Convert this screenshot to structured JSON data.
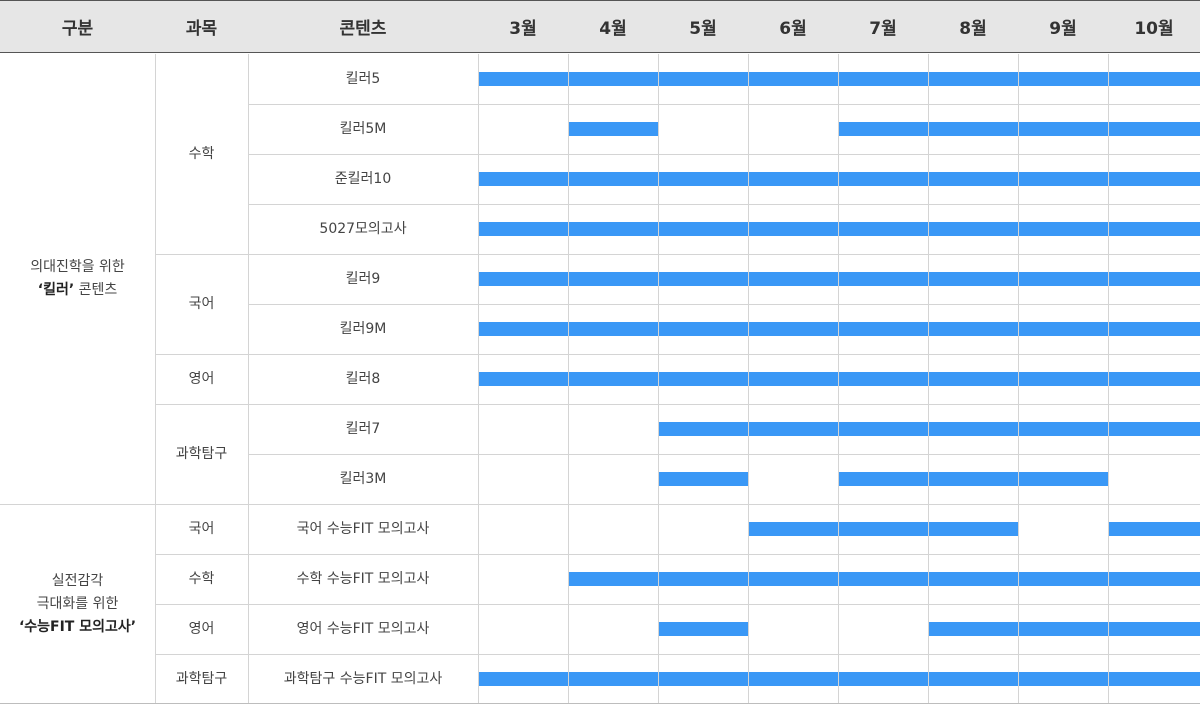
{
  "colors": {
    "bar": "#3a98f6",
    "header_bg": "#e6e6e6"
  },
  "header": {
    "category": "구분",
    "subject": "과목",
    "content": "콘텐츠"
  },
  "months": [
    "3월",
    "4월",
    "5월",
    "6월",
    "7월",
    "8월",
    "9월",
    "10월"
  ],
  "groups": [
    {
      "line1": "의대진학을 위한",
      "line2_bold": "‘킬러’",
      "line2_rest": " 콘텐츠",
      "line3_bold": ""
    },
    {
      "line1": "실전감각",
      "line2_bold": "",
      "line2_rest": "극대화를 위한",
      "line3_bold": "‘수능FIT 모의고사’"
    }
  ],
  "subjects": [
    "수학",
    "국어",
    "영어",
    "과학탐구",
    "국어",
    "수학",
    "영어",
    "과학탐구"
  ],
  "rows": [
    {
      "content": "킬러5",
      "active": [
        "3월",
        "4월",
        "5월",
        "6월",
        "7월",
        "8월",
        "9월",
        "10월"
      ]
    },
    {
      "content": "킬러5M",
      "active": [
        "4월",
        "7월",
        "8월",
        "9월",
        "10월"
      ]
    },
    {
      "content": "준킬러10",
      "active": [
        "3월",
        "4월",
        "5월",
        "6월",
        "7월",
        "8월",
        "9월",
        "10월"
      ]
    },
    {
      "content": "5027모의고사",
      "active": [
        "3월",
        "4월",
        "5월",
        "6월",
        "7월",
        "8월",
        "9월",
        "10월"
      ]
    },
    {
      "content": "킬러9",
      "active": [
        "3월",
        "4월",
        "5월",
        "6월",
        "7월",
        "8월",
        "9월",
        "10월"
      ]
    },
    {
      "content": "킬러9M",
      "active": [
        "3월",
        "4월",
        "5월",
        "6월",
        "7월",
        "8월",
        "9월",
        "10월"
      ]
    },
    {
      "content": "킬러8",
      "active": [
        "3월",
        "4월",
        "5월",
        "6월",
        "7월",
        "8월",
        "9월",
        "10월"
      ]
    },
    {
      "content": "킬러7",
      "active": [
        "5월",
        "6월",
        "7월",
        "8월",
        "9월",
        "10월"
      ]
    },
    {
      "content": "킬러3M",
      "active": [
        "5월",
        "7월",
        "8월",
        "9월"
      ]
    },
    {
      "content": "국어 수능FIT 모의고사",
      "active": [
        "6월",
        "7월",
        "8월",
        "10월"
      ]
    },
    {
      "content": "수학 수능FIT 모의고사",
      "active": [
        "4월",
        "5월",
        "6월",
        "7월",
        "8월",
        "9월",
        "10월"
      ]
    },
    {
      "content": "영어 수능FIT 모의고사",
      "active": [
        "5월",
        "8월",
        "9월",
        "10월"
      ]
    },
    {
      "content": "과학탐구 수능FIT 모의고사",
      "active": [
        "3월",
        "4월",
        "5월",
        "6월",
        "7월",
        "8월",
        "9월",
        "10월"
      ]
    }
  ]
}
